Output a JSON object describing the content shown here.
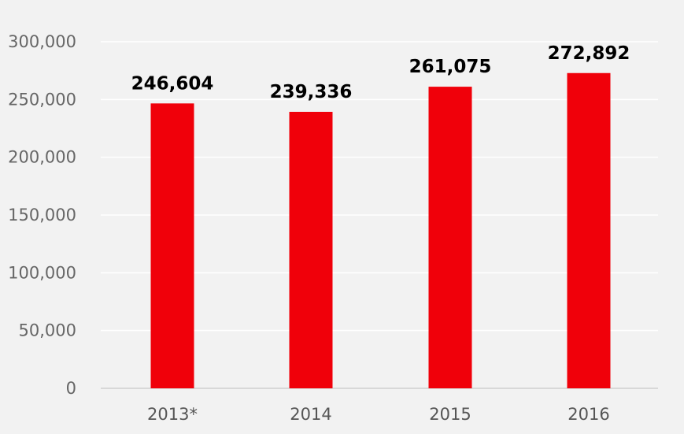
{
  "chart_data": {
    "type": "bar",
    "title": "",
    "xlabel": "",
    "ylabel": "",
    "categories": [
      "2013*",
      "2014",
      "2015",
      "2016"
    ],
    "values": [
      246604,
      239336,
      261075,
      272892
    ],
    "data_labels": [
      "246,604",
      "239,336",
      "261,075",
      "272,892"
    ],
    "y_ticks": [
      "0",
      "50,000",
      "100,000",
      "150,000",
      "200,000",
      "250,000",
      "300,000"
    ],
    "y_tick_values": [
      0,
      50000,
      100000,
      150000,
      200000,
      250000,
      300000
    ],
    "ylim": [
      0,
      300000
    ],
    "bar_color": "#f0000a",
    "background_color": "#f2f2f2",
    "gridlines": true,
    "legend": "none"
  }
}
